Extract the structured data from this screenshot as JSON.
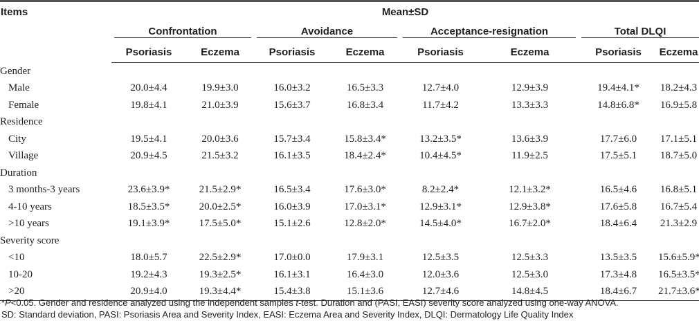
{
  "header": {
    "items": "Items",
    "mean_sd": "Mean±SD",
    "groups": [
      "Confrontation",
      "Avoidance",
      "Acceptance-resignation",
      "Total DLQI"
    ],
    "sub": [
      "Psoriasis",
      "Eczema",
      "Psoriasis",
      "Eczema",
      "Psoriasis",
      "Eczema",
      "Psoriasis",
      "Eczema"
    ]
  },
  "sections": [
    {
      "title": "Gender",
      "rows": [
        {
          "label": "Male",
          "values": [
            "20.0±4.4",
            "19.9±3.0",
            "16.0±3.2",
            "16.5±3.3",
            "12.7±4.0",
            "12.9±3.9",
            "19.4±4.1*",
            "18.2±4.3"
          ]
        },
        {
          "label": "Female",
          "values": [
            "19.8±4.1",
            "21.0±3.9",
            "15.6±3.7",
            "16.8±3.4",
            "11.7±4.2",
            "13.3±3.3",
            "14.8±6.8*",
            "16.9±5.8"
          ]
        }
      ]
    },
    {
      "title": "Residence",
      "rows": [
        {
          "label": "City",
          "values": [
            "19.5±4.1",
            "20.0±3.6",
            "15.7±3.4",
            "15.8±3.4*",
            "13.2±3.5*",
            "13.6±3.9",
            "17.7±6.0",
            "17.1±5.1"
          ]
        },
        {
          "label": "Village",
          "values": [
            "20.9±4.5",
            "21.5±3.2",
            "16.1±3.5",
            "18.4±2.4*",
            "10.4±4.5*",
            "11.9±2.5",
            "17.5±5.1",
            "18.7±5.0"
          ]
        }
      ]
    },
    {
      "title": "Duration",
      "rows": [
        {
          "label": "3 months-3 years",
          "values": [
            "23.6±3.9*",
            "21.5±2.9*",
            "16.5±3.4",
            "17.6±3.0*",
            "8.2±2.4*",
            "12.1±3.2*",
            "16.5±4.6",
            "16.8±5.1"
          ]
        },
        {
          "label": "4-10 years",
          "values": [
            "18.5±3.5*",
            "20.0±2.5*",
            "16.0±3.9",
            "17.0±3.1*",
            "12.9±3.1*",
            "12.9±3.8*",
            "17.6±5.8",
            "16.7±5.4"
          ]
        },
        {
          "label": ">10 years",
          "values": [
            "19.1±3.9*",
            "17.5±5.0*",
            "15.1±2.6",
            "12.8±2.0*",
            "14.5±4.0*",
            "16.7±2.0*",
            "18.4±6.4",
            "21.3±2.9"
          ]
        }
      ]
    },
    {
      "title": "Severity score",
      "rows": [
        {
          "label": "<10",
          "values": [
            "18.0±5.7",
            "22.5±2.9*",
            "17.0±0.0",
            "17.9±3.1",
            "12.5±3.5",
            "12.5±3.3",
            "13.5±3.5",
            "15.6±5.9*"
          ]
        },
        {
          "label": "10-20",
          "values": [
            "19.2±4.3",
            "19.3±2.5*",
            "16.1±3.1",
            "16.4±3.0",
            "12.0±3.6",
            "12.5±3.0",
            "17.3±4.8",
            "16.5±3.5*"
          ]
        },
        {
          "label": ">20",
          "values": [
            "20.9±4.0",
            "19.3±4.4*",
            "15.4±3.8",
            "15.1±3.6",
            "12.7±4.6",
            "14.8±4.5",
            "18.4±6.7",
            "21.7±3.6*"
          ]
        }
      ]
    }
  ],
  "notes": {
    "line1_prefix": "*",
    "line1_p": "P",
    "line1_mid": "<0.05. Gender and residence analyzed using the independent samples ",
    "line1_t": "t",
    "line1_rest": "-test. Duration and (PASI, EASI) severity score analyzed using one-way ANOVA.",
    "line2": "SD: Standard deviation, PASI: Psoriasis Area and Severity Index, EASI: Eczema Area and Severity Index, DLQI: Dermatology Life Quality Index"
  }
}
